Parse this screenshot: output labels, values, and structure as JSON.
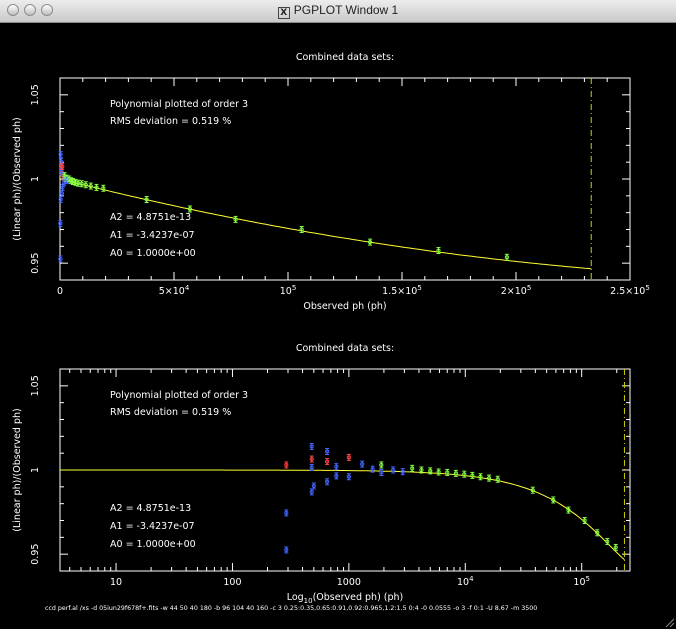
{
  "window": {
    "title": "PGPLOT Window 1",
    "title_icon": "x11-icon"
  },
  "colors": {
    "background": "#000000",
    "axes": "#ffffff",
    "fit_curve": "#ffff33",
    "limit_line": "#cccc00",
    "point_blue": "#4466ff",
    "point_red": "#ff4444",
    "point_green": "#88ff44"
  },
  "chart_data": [
    {
      "type": "scatter",
      "title": "Combined data sets:",
      "xlabel": "Observed ph (ph)",
      "ylabel": "(Linear ph)/(Observed ph)",
      "xlim": [
        0,
        250000
      ],
      "ylim": [
        0.94,
        1.06
      ],
      "x_ticks": [
        {
          "value": 0,
          "label": "0"
        },
        {
          "value": 50000,
          "label": "5×10",
          "exp": "4"
        },
        {
          "value": 100000,
          "label": "10",
          "exp": "5"
        },
        {
          "value": 150000,
          "label": "1.5×10",
          "exp": "5"
        },
        {
          "value": 200000,
          "label": "2×10",
          "exp": "5"
        },
        {
          "value": 250000,
          "label": "2.5×10",
          "exp": "5"
        }
      ],
      "y_ticks": [
        {
          "value": 0.95,
          "label": "0.95"
        },
        {
          "value": 1,
          "label": "1"
        },
        {
          "value": 1.05,
          "label": "1.05"
        }
      ],
      "info": [
        "Polynomial plotted of order  3",
        "RMS deviation =     0.519  %"
      ],
      "coeffs": [
        "A2 = 4.8751e-13",
        "A1 = -3.4237e-07",
        "A0 = 1.0000e+00"
      ],
      "limit_x": 233000,
      "points": [
        {
          "x": 180,
          "y": 0.9525,
          "c": "b"
        },
        {
          "x": 180,
          "y": 0.9735,
          "c": "b"
        },
        {
          "x": 300,
          "y": 0.9878,
          "c": "b"
        },
        {
          "x": 300,
          "y": 1.0145,
          "c": "b"
        },
        {
          "x": 500,
          "y": 1.0105,
          "c": "b"
        },
        {
          "x": 500,
          "y": 1.0062,
          "c": "r"
        },
        {
          "x": 700,
          "y": 1.0045,
          "c": "b"
        },
        {
          "x": 900,
          "y": 0.9915,
          "c": "b"
        },
        {
          "x": 1000,
          "y": 1.0075,
          "c": "r"
        },
        {
          "x": 1100,
          "y": 0.995,
          "c": "b"
        },
        {
          "x": 1300,
          "y": 1.002,
          "c": "b"
        },
        {
          "x": 1600,
          "y": 1.001,
          "c": "r"
        },
        {
          "x": 1800,
          "y": 0.9978,
          "c": "b"
        },
        {
          "x": 2000,
          "y": 1.002,
          "c": "g"
        },
        {
          "x": 2400,
          "y": 0.999,
          "c": "b"
        },
        {
          "x": 2800,
          "y": 1.0005,
          "c": "g"
        },
        {
          "x": 3300,
          "y": 0.9993,
          "c": "b"
        },
        {
          "x": 4000,
          "y": 1.0,
          "c": "g"
        },
        {
          "x": 4800,
          "y": 0.999,
          "c": "g"
        },
        {
          "x": 5700,
          "y": 0.9985,
          "c": "g"
        },
        {
          "x": 6800,
          "y": 0.998,
          "c": "g"
        },
        {
          "x": 8000,
          "y": 0.9975,
          "c": "g"
        },
        {
          "x": 9500,
          "y": 0.9972,
          "c": "g"
        },
        {
          "x": 11300,
          "y": 0.9966,
          "c": "g"
        },
        {
          "x": 13500,
          "y": 0.9958,
          "c": "g"
        },
        {
          "x": 16000,
          "y": 0.995,
          "c": "g"
        },
        {
          "x": 19000,
          "y": 0.9945,
          "c": "g"
        },
        {
          "x": 38000,
          "y": 0.9878,
          "c": "g"
        },
        {
          "x": 57000,
          "y": 0.9822,
          "c": "g"
        },
        {
          "x": 77000,
          "y": 0.976,
          "c": "g"
        },
        {
          "x": 106000,
          "y": 0.97,
          "c": "g"
        },
        {
          "x": 136000,
          "y": 0.9625,
          "c": "g"
        },
        {
          "x": 166000,
          "y": 0.9575,
          "c": "g"
        },
        {
          "x": 196000,
          "y": 0.9535,
          "c": "g"
        }
      ]
    },
    {
      "type": "scatter",
      "title": "Combined data sets:",
      "xlabel": "Log",
      "xlabel_sub": "10",
      "xlabel_rest": "(Observed ph) (ph)",
      "ylabel": "(Linear ph)/(Observed ph)",
      "xscale": "log",
      "xlim": [
        3.3,
        260000
      ],
      "ylim": [
        0.94,
        1.06
      ],
      "x_ticks": [
        {
          "value": 10,
          "label": "10",
          "exp": ""
        },
        {
          "value": 100,
          "label": "100",
          "exp": ""
        },
        {
          "value": 1000,
          "label": "1000",
          "exp": ""
        },
        {
          "value": 10000,
          "label": "10",
          "exp": "4"
        },
        {
          "value": 100000,
          "label": "10",
          "exp": "5"
        }
      ],
      "y_ticks": [
        {
          "value": 0.95,
          "label": "0.95"
        },
        {
          "value": 1,
          "label": "1"
        },
        {
          "value": 1.05,
          "label": "1.05"
        }
      ],
      "info": [
        "Polynomial plotted of order  3",
        "RMS deviation =     0.519  %"
      ],
      "coeffs": [
        "A2 = 4.8751e-13",
        "A1 = -3.4237e-07",
        "A0 = 1.0000e+00"
      ],
      "limit_x": 233000,
      "points": [
        {
          "x": 290,
          "y": 0.9525,
          "c": "b"
        },
        {
          "x": 290,
          "y": 0.9745,
          "c": "b"
        },
        {
          "x": 290,
          "y": 1.003,
          "c": "r"
        },
        {
          "x": 480,
          "y": 1.014,
          "c": "b"
        },
        {
          "x": 480,
          "y": 1.0065,
          "c": "r"
        },
        {
          "x": 480,
          "y": 1.0015,
          "c": "b"
        },
        {
          "x": 480,
          "y": 0.987,
          "c": "b"
        },
        {
          "x": 500,
          "y": 0.9905,
          "c": "b"
        },
        {
          "x": 650,
          "y": 1.011,
          "c": "b"
        },
        {
          "x": 650,
          "y": 1.005,
          "c": "r"
        },
        {
          "x": 650,
          "y": 0.993,
          "c": "b"
        },
        {
          "x": 780,
          "y": 1.002,
          "c": "b"
        },
        {
          "x": 780,
          "y": 0.9965,
          "c": "b"
        },
        {
          "x": 1000,
          "y": 1.0075,
          "c": "r"
        },
        {
          "x": 1000,
          "y": 0.996,
          "c": "b"
        },
        {
          "x": 1300,
          "y": 1.0035,
          "c": "b"
        },
        {
          "x": 1600,
          "y": 1.0005,
          "c": "b"
        },
        {
          "x": 1900,
          "y": 1.003,
          "c": "g"
        },
        {
          "x": 1900,
          "y": 0.9985,
          "c": "b"
        },
        {
          "x": 2400,
          "y": 1.0,
          "c": "b"
        },
        {
          "x": 2900,
          "y": 0.999,
          "c": "b"
        },
        {
          "x": 3500,
          "y": 1.001,
          "c": "g"
        },
        {
          "x": 4200,
          "y": 1.0,
          "c": "g"
        },
        {
          "x": 5000,
          "y": 0.9995,
          "c": "g"
        },
        {
          "x": 5900,
          "y": 0.9988,
          "c": "g"
        },
        {
          "x": 7000,
          "y": 0.9985,
          "c": "g"
        },
        {
          "x": 8300,
          "y": 0.998,
          "c": "g"
        },
        {
          "x": 9800,
          "y": 0.9975,
          "c": "g"
        },
        {
          "x": 11500,
          "y": 0.9968,
          "c": "g"
        },
        {
          "x": 13500,
          "y": 0.996,
          "c": "g"
        },
        {
          "x": 16000,
          "y": 0.9952,
          "c": "g"
        },
        {
          "x": 19000,
          "y": 0.9945,
          "c": "g"
        },
        {
          "x": 38000,
          "y": 0.988,
          "c": "g"
        },
        {
          "x": 57000,
          "y": 0.9822,
          "c": "g"
        },
        {
          "x": 77000,
          "y": 0.9762,
          "c": "g"
        },
        {
          "x": 106000,
          "y": 0.97,
          "c": "g"
        },
        {
          "x": 136000,
          "y": 0.9627,
          "c": "g"
        },
        {
          "x": 166000,
          "y": 0.9575,
          "c": "g"
        },
        {
          "x": 196000,
          "y": 0.954,
          "c": "g"
        }
      ]
    }
  ],
  "command_line": "ccd perf.al /xs -d 05iun29f678f+.fits -w 44 50 40 180 -b 96 104 40 160 -c 3 0.25:0.35,0.65:0.91,0.92:0.965,1.2:1.5 0:4 -0 0.0555 -o 3 -f 0:1 -U 8.67 -m 3500"
}
